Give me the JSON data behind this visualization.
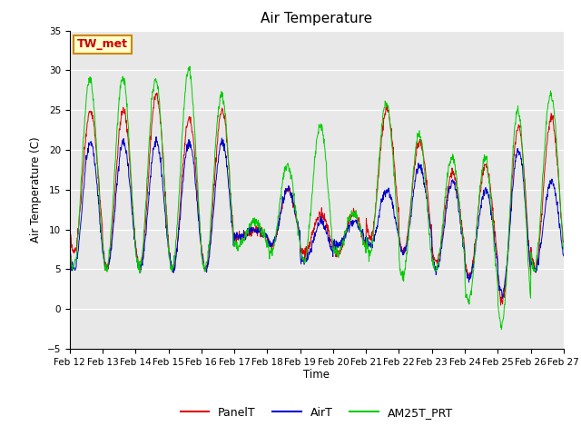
{
  "title": "Air Temperature",
  "ylabel": "Air Temperature (C)",
  "xlabel": "Time",
  "annotation": "TW_met",
  "ylim": [
    -5,
    35
  ],
  "y_ticks": [
    -5,
    0,
    5,
    10,
    15,
    20,
    25,
    30,
    35
  ],
  "x_labels": [
    "Feb 12",
    "Feb 13",
    "Feb 14",
    "Feb 15",
    "Feb 16",
    "Feb 17",
    "Feb 18",
    "Feb 19",
    "Feb 20",
    "Feb 21",
    "Feb 22",
    "Feb 23",
    "Feb 24",
    "Feb 25",
    "Feb 26",
    "Feb 27"
  ],
  "legend_labels": [
    "PanelT",
    "AirT",
    "AM25T_PRT"
  ],
  "line_colors": [
    "#dd0000",
    "#0000cc",
    "#00cc00"
  ],
  "bg_color": "#e8e8e8",
  "annotation_bg": "#ffffcc",
  "annotation_border": "#cc8800",
  "annotation_text_color": "#cc0000",
  "panel_mins": [
    7,
    5,
    5,
    5,
    5,
    9,
    8,
    7,
    7,
    9,
    7,
    6,
    4,
    1,
    5
  ],
  "panel_maxs": [
    25,
    25,
    27,
    24,
    25,
    10,
    15,
    12,
    12,
    25,
    21,
    17,
    18,
    23,
    24
  ],
  "air_mins": [
    5,
    5,
    5,
    5,
    5,
    9,
    8,
    6,
    8,
    8,
    7,
    5,
    4,
    2,
    5
  ],
  "air_maxs": [
    21,
    21,
    21,
    21,
    21,
    10,
    15,
    11,
    11,
    15,
    18,
    16,
    15,
    20,
    16
  ],
  "am25_mins": [
    5,
    5,
    5,
    5,
    5,
    8,
    7,
    6,
    7,
    7,
    4,
    5,
    1,
    -2,
    5
  ],
  "am25_maxs": [
    29,
    29,
    29,
    30,
    27,
    11,
    18,
    23,
    12,
    26,
    22,
    19,
    19,
    25,
    27
  ]
}
